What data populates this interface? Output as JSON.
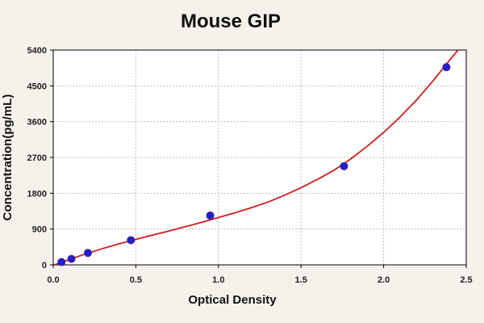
{
  "chart_data": {
    "type": "scatter",
    "title": "Mouse GIP",
    "xlabel": "Optical Density",
    "ylabel": "Concentration(pg/mL)",
    "xlim": [
      0.0,
      2.5
    ],
    "ylim": [
      0,
      5400
    ],
    "x_ticks": [
      "0.0",
      "0.5",
      "1.0",
      "1.5",
      "2.0",
      "2.5"
    ],
    "y_ticks": [
      "0",
      "900",
      "1800",
      "2700",
      "3600",
      "4500",
      "5400"
    ],
    "grid": true,
    "series": [
      {
        "type": "scatter",
        "color": "#1f1fd0",
        "points": [
          {
            "x": 0.05,
            "y": 70
          },
          {
            "x": 0.11,
            "y": 150
          },
          {
            "x": 0.21,
            "y": 300
          },
          {
            "x": 0.47,
            "y": 620
          },
          {
            "x": 0.95,
            "y": 1240
          },
          {
            "x": 1.76,
            "y": 2480
          },
          {
            "x": 2.38,
            "y": 4970
          }
        ]
      },
      {
        "type": "line",
        "color": "#cc1f1f",
        "points": [
          {
            "x": 0.0,
            "y": -10
          },
          {
            "x": 0.1,
            "y": 140
          },
          {
            "x": 0.2,
            "y": 280
          },
          {
            "x": 0.3,
            "y": 410
          },
          {
            "x": 0.4,
            "y": 530
          },
          {
            "x": 0.5,
            "y": 640
          },
          {
            "x": 0.6,
            "y": 750
          },
          {
            "x": 0.7,
            "y": 850
          },
          {
            "x": 0.8,
            "y": 960
          },
          {
            "x": 0.9,
            "y": 1070
          },
          {
            "x": 1.0,
            "y": 1190
          },
          {
            "x": 1.1,
            "y": 1310
          },
          {
            "x": 1.2,
            "y": 1440
          },
          {
            "x": 1.3,
            "y": 1580
          },
          {
            "x": 1.4,
            "y": 1750
          },
          {
            "x": 1.5,
            "y": 1940
          },
          {
            "x": 1.6,
            "y": 2150
          },
          {
            "x": 1.7,
            "y": 2380
          },
          {
            "x": 1.8,
            "y": 2660
          },
          {
            "x": 1.9,
            "y": 2980
          },
          {
            "x": 2.0,
            "y": 3330
          },
          {
            "x": 2.1,
            "y": 3720
          },
          {
            "x": 2.2,
            "y": 4150
          },
          {
            "x": 2.3,
            "y": 4630
          },
          {
            "x": 2.4,
            "y": 5150
          },
          {
            "x": 2.45,
            "y": 5400
          }
        ]
      }
    ],
    "colors": {
      "background": "#f4f2ea",
      "plot_background": "#ffffff",
      "grid": "#bdbdbd",
      "axis": "#000000"
    }
  }
}
